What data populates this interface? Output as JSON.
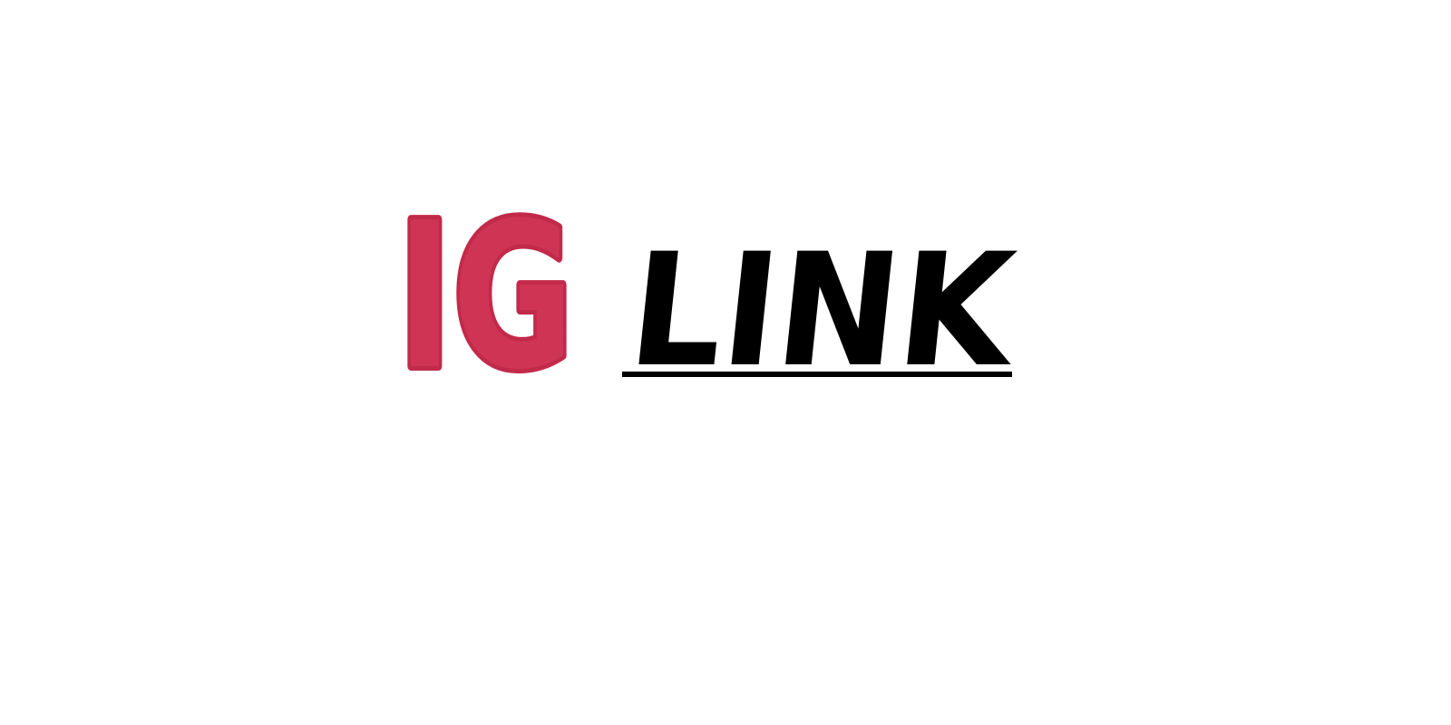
{
  "logo": {
    "brand": "IG",
    "word": "LINK"
  }
}
